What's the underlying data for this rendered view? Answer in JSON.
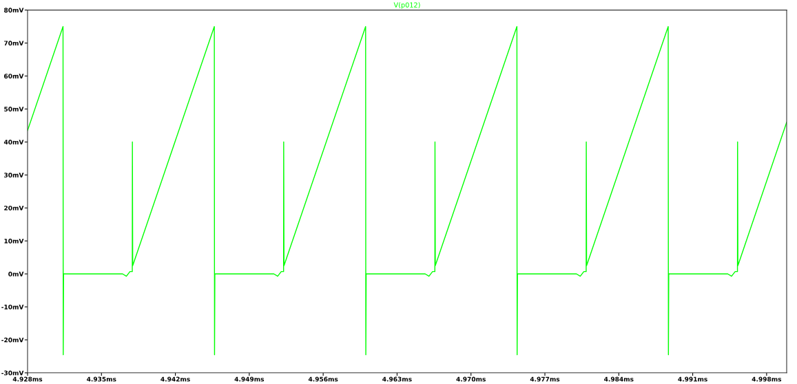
{
  "chart_data": {
    "type": "line",
    "x": [
      4.928,
      4.93136,
      4.93138,
      4.93141,
      4.937,
      4.93736,
      4.9377,
      4.93792,
      4.93793,
      4.93796,
      4.94569,
      4.94571,
      4.94574,
      4.95133,
      4.95169,
      4.95203,
      4.95225,
      4.95226,
      4.95229,
      4.96002,
      4.96004,
      4.96007,
      4.96566,
      4.96602,
      4.96636,
      4.96658,
      4.96659,
      4.96662,
      4.97435,
      4.97437,
      4.9744,
      4.97999,
      4.98035,
      4.98069,
      4.98091,
      4.98092,
      4.98095,
      4.98868,
      4.9887,
      4.98873,
      4.99432,
      4.99468,
      4.99502,
      4.99524,
      4.99525,
      4.99528,
      4.9999
    ],
    "series": [
      {
        "name": "V(p012)",
        "color": "#00ff00",
        "values": [
          43.5,
          75,
          -24.5,
          0,
          0,
          -0.7,
          0.7,
          0.7,
          40,
          2.5,
          75,
          -24.5,
          0,
          0,
          -0.7,
          0.7,
          0.7,
          40,
          2.5,
          75,
          -24.5,
          0,
          0,
          -0.7,
          0.7,
          0.7,
          40,
          2.5,
          75,
          -24.5,
          0,
          0,
          -0.7,
          0.7,
          0.7,
          40,
          2.5,
          75,
          -24.5,
          0,
          0,
          -0.7,
          0.7,
          0.7,
          40,
          2.5,
          46
        ]
      }
    ],
    "xlim": [
      4.928,
      4.9999
    ],
    "ylim": [
      -30,
      80
    ],
    "xticks": [
      {
        "value": 4.928,
        "label": "4.928ms"
      },
      {
        "value": 4.935,
        "label": "4.935ms"
      },
      {
        "value": 4.942,
        "label": "4.942ms"
      },
      {
        "value": 4.949,
        "label": "4.949ms"
      },
      {
        "value": 4.956,
        "label": "4.956ms"
      },
      {
        "value": 4.963,
        "label": "4.963ms"
      },
      {
        "value": 4.97,
        "label": "4.970ms"
      },
      {
        "value": 4.977,
        "label": "4.977ms"
      },
      {
        "value": 4.984,
        "label": "4.984ms"
      },
      {
        "value": 4.991,
        "label": "4.991ms"
      },
      {
        "value": 4.998,
        "label": "4.998ms"
      }
    ],
    "yticks": [
      {
        "value": -30,
        "label": "-30mV"
      },
      {
        "value": -20,
        "label": "-20mV"
      },
      {
        "value": -10,
        "label": "-10mV"
      },
      {
        "value": 0,
        "label": "0mV"
      },
      {
        "value": 10,
        "label": "10mV"
      },
      {
        "value": 20,
        "label": "20mV"
      },
      {
        "value": 30,
        "label": "30mV"
      },
      {
        "value": 40,
        "label": "40mV"
      },
      {
        "value": 50,
        "label": "50mV"
      },
      {
        "value": 60,
        "label": "60mV"
      },
      {
        "value": 70,
        "label": "70mV"
      },
      {
        "value": 80,
        "label": "80mV"
      }
    ],
    "grid": false
  }
}
